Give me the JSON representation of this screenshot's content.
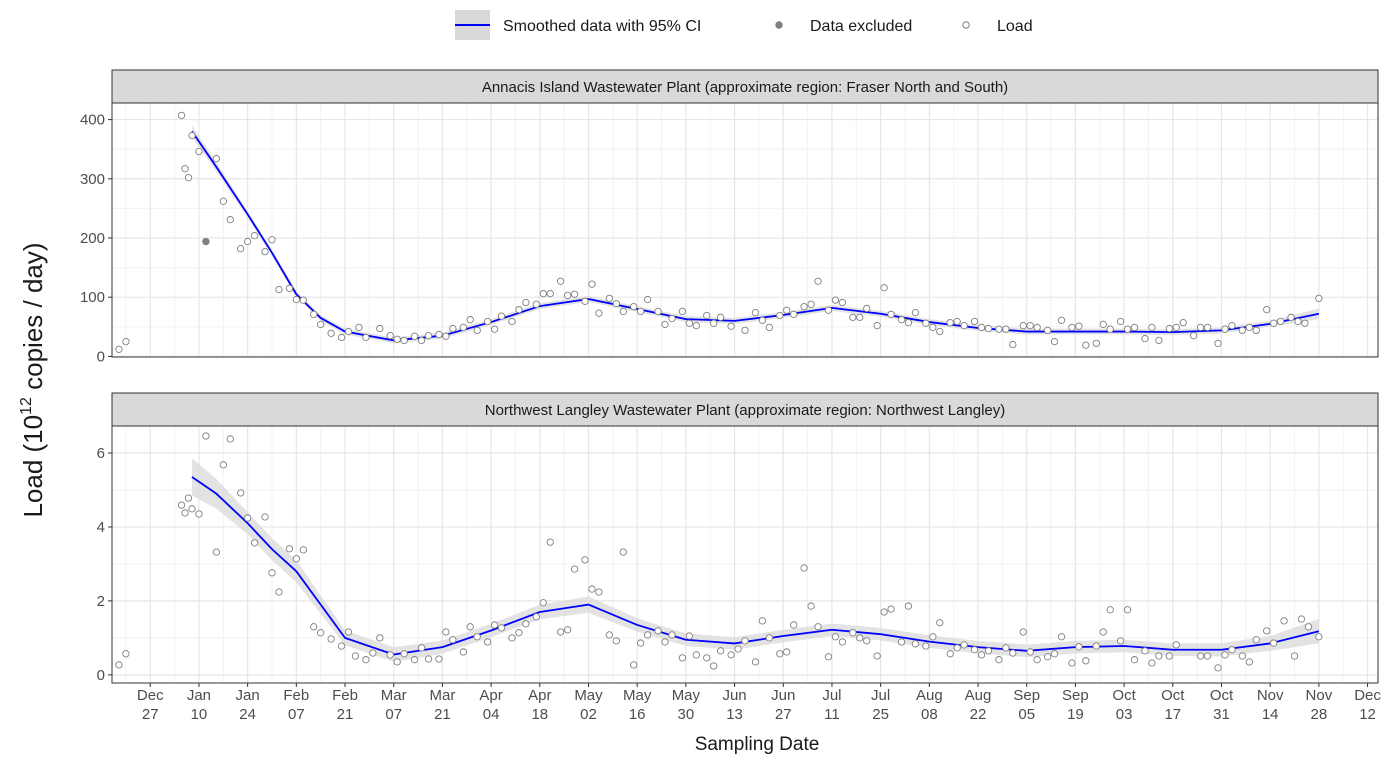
{
  "chart_data": {
    "type": "scatter",
    "x_label": "Sampling Date",
    "y_label": [
      "Load (10",
      "12",
      " copies / day)"
    ],
    "legend": [
      {
        "name": "Smoothed data with 95% CI",
        "color": "#0000ff",
        "marker": "line"
      },
      {
        "name": "Data excluded",
        "color": "#7f7f7f",
        "marker": "filled"
      },
      {
        "name": "Load",
        "color": "#7f7f7f",
        "marker": "open"
      }
    ],
    "grid": true,
    "xlim": [
      "Dec 16",
      "Dec 15"
    ],
    "xticks": [
      "Dec 27",
      "Jan 10",
      "Jan 24",
      "Feb 07",
      "Feb 21",
      "Mar 07",
      "Mar 21",
      "Apr 04",
      "Apr 18",
      "May 02",
      "May 16",
      "May 30",
      "Jun 13",
      "Jun 27",
      "Jul 11",
      "Jul 25",
      "Aug 08",
      "Aug 22",
      "Sep 05",
      "Sep 19",
      "Oct 03",
      "Oct 17",
      "Oct 31",
      "Nov 14",
      "Nov 28",
      "Dec 12"
    ],
    "panels": [
      {
        "title": "Annacis Island Wastewater Plant (approximate region: Fraser North and South)",
        "ylim": [
          -1,
          428
        ],
        "yticks": [
          0,
          100,
          200,
          300,
          400
        ],
        "load": {
          "x": [
            "Dec 18",
            "Dec 20",
            "Jan 5",
            "Jan 6",
            "Jan 7",
            "Jan 8",
            "Jan 10",
            "Jan 15",
            "Jan 17",
            "Jan 19",
            "Jan 22",
            "Jan 24",
            "Jan 26",
            "Jan 29",
            "Jan 31",
            "Feb 2",
            "Feb 5",
            "Feb 7",
            "Feb 9",
            "Feb 12",
            "Feb 14",
            "Feb 17",
            "Feb 20",
            "Feb 22",
            "Feb 25",
            "Feb 27",
            "Mar 3",
            "Mar 6",
            "Mar 8",
            "Mar 10",
            "Mar 13",
            "Mar 15",
            "Mar 17",
            "Mar 20",
            "Mar 22",
            "Mar 24",
            "Mar 27",
            "Mar 29",
            "Mar 31",
            "Apr 3",
            "Apr 5",
            "Apr 7",
            "Apr 10",
            "Apr 12",
            "Apr 14",
            "Apr 17",
            "Apr 19",
            "Apr 21",
            "Apr 24",
            "Apr 26",
            "Apr 28",
            "May 1",
            "May 3",
            "May 5",
            "May 8",
            "May 10",
            "May 12",
            "May 15",
            "May 17",
            "May 19",
            "May 22",
            "May 24",
            "May 26",
            "May 29",
            "May 31",
            "Jun 2",
            "Jun 5",
            "Jun 7",
            "Jun 9",
            "Jun 12",
            "Jun 16",
            "Jun 19",
            "Jun 21",
            "Jun 23",
            "Jun 26",
            "Jun 28",
            "Jun 30",
            "Jul 3",
            "Jul 5",
            "Jul 7",
            "Jul 10",
            "Jul 12",
            "Jul 14",
            "Jul 17",
            "Jul 19",
            "Jul 21",
            "Jul 24",
            "Jul 26",
            "Jul 28",
            "Jul 31",
            "Aug 2",
            "Aug 4",
            "Aug 7",
            "Aug 9",
            "Aug 11",
            "Aug 14",
            "Aug 16",
            "Aug 18",
            "Aug 21",
            "Aug 23",
            "Aug 25",
            "Aug 28",
            "Aug 30",
            "Sep 1",
            "Sep 4",
            "Sep 6",
            "Sep 8",
            "Sep 11",
            "Sep 13",
            "Sep 15",
            "Sep 18",
            "Sep 20",
            "Sep 22",
            "Sep 25",
            "Sep 27",
            "Sep 29",
            "Oct 2",
            "Oct 4",
            "Oct 6",
            "Oct 9",
            "Oct 11",
            "Oct 13",
            "Oct 16",
            "Oct 18",
            "Oct 20",
            "Oct 23",
            "Oct 25",
            "Oct 27",
            "Oct 30",
            "Nov 1",
            "Nov 3",
            "Nov 6",
            "Nov 8",
            "Nov 10",
            "Nov 13",
            "Nov 15",
            "Nov 17",
            "Nov 20",
            "Nov 22",
            "Nov 24",
            "Nov 28"
          ],
          "values": [
            12,
            25,
            407,
            317,
            302,
            373,
            346,
            334,
            262,
            231,
            182,
            194,
            204,
            177,
            197,
            113,
            115,
            96,
            95,
            71,
            54,
            39,
            32,
            42,
            49,
            32,
            47,
            35,
            29,
            27,
            34,
            27,
            35,
            37,
            34,
            47,
            49,
            62,
            44,
            59,
            46,
            68,
            59,
            79,
            91,
            88,
            106,
            106,
            127,
            103,
            105,
            93,
            122,
            73,
            98,
            89,
            76,
            84,
            76,
            96,
            76,
            54,
            64,
            76,
            56,
            52,
            69,
            56,
            66,
            51,
            44,
            74,
            61,
            49,
            69,
            78,
            71,
            84,
            88,
            127,
            78,
            95,
            91,
            66,
            66,
            81,
            52,
            116,
            71,
            62,
            57,
            74,
            56,
            49,
            42,
            57,
            59,
            52,
            59,
            49,
            47,
            46,
            46,
            20,
            52,
            52,
            49,
            44,
            25,
            61,
            49,
            51,
            19,
            22,
            54,
            46,
            59,
            46,
            49,
            30,
            49,
            27,
            47,
            49,
            57,
            35,
            49,
            49,
            22,
            46,
            52,
            44,
            49,
            44,
            79,
            56,
            59,
            66,
            59,
            56,
            98
          ]
        },
        "excluded": {
          "x": [
            "Jan 12"
          ],
          "values": [
            194
          ]
        },
        "smooth": {
          "x": [
            "Jan 8",
            "Jan 15",
            "Jan 24",
            "Jan 31",
            "Feb 7",
            "Feb 14",
            "Feb 21",
            "Mar 7",
            "Mar 21",
            "Apr 4",
            "Apr 18",
            "May 2",
            "May 16",
            "May 30",
            "Jun 13",
            "Jun 27",
            "Jul 11",
            "Jul 25",
            "Aug 8",
            "Aug 22",
            "Sep 5",
            "Sep 19",
            "Oct 3",
            "Oct 17",
            "Oct 31",
            "Nov 14",
            "Nov 28"
          ],
          "values": [
            380,
            320,
            240,
            175,
            105,
            65,
            42,
            27,
            35,
            58,
            85,
            97,
            80,
            63,
            60,
            70,
            82,
            72,
            58,
            48,
            42,
            42,
            42,
            41,
            44,
            55,
            72
          ],
          "lower": [
            370,
            312,
            234,
            170,
            100,
            60,
            37,
            22,
            30,
            53,
            80,
            92,
            75,
            58,
            55,
            65,
            77,
            67,
            53,
            43,
            37,
            37,
            37,
            36,
            39,
            50,
            63
          ],
          "upper": [
            390,
            328,
            246,
            180,
            110,
            70,
            47,
            32,
            40,
            63,
            90,
            102,
            85,
            68,
            65,
            75,
            87,
            77,
            63,
            53,
            47,
            47,
            47,
            46,
            49,
            60,
            81
          ]
        }
      },
      {
        "title": "Northwest Langley Wastewater Plant (approximate region: Northwest Langley)",
        "ylim": [
          -0.22,
          6.73
        ],
        "yticks": [
          0,
          2,
          4,
          6
        ],
        "load": {
          "x": [
            "Dec 18",
            "Dec 20",
            "Jan 5",
            "Jan 6",
            "Jan 7",
            "Jan 8",
            "Jan 10",
            "Jan 12",
            "Jan 15",
            "Jan 17",
            "Jan 19",
            "Jan 22",
            "Jan 24",
            "Jan 26",
            "Jan 29",
            "Jan 31",
            "Feb 2",
            "Feb 5",
            "Feb 7",
            "Feb 9",
            "Feb 12",
            "Feb 14",
            "Feb 17",
            "Feb 20",
            "Feb 22",
            "Feb 24",
            "Feb 27",
            "Mar 1",
            "Mar 3",
            "Mar 6",
            "Mar 8",
            "Mar 10",
            "Mar 13",
            "Mar 15",
            "Mar 17",
            "Mar 20",
            "Mar 22",
            "Mar 24",
            "Mar 27",
            "Mar 29",
            "Mar 31",
            "Apr 3",
            "Apr 5",
            "Apr 7",
            "Apr 10",
            "Apr 12",
            "Apr 14",
            "Apr 17",
            "Apr 19",
            "Apr 21",
            "Apr 24",
            "Apr 26",
            "Apr 28",
            "May 1",
            "May 3",
            "May 5",
            "May 8",
            "May 10",
            "May 12",
            "May 15",
            "May 17",
            "May 19",
            "May 22",
            "May 24",
            "May 26",
            "May 29",
            "May 31",
            "Jun 2",
            "Jun 5",
            "Jun 7",
            "Jun 9",
            "Jun 12",
            "Jun 14",
            "Jun 16",
            "Jun 19",
            "Jun 21",
            "Jun 23",
            "Jun 26",
            "Jun 28",
            "Jun 30",
            "Jul 3",
            "Jul 5",
            "Jul 7",
            "Jul 10",
            "Jul 12",
            "Jul 14",
            "Jul 17",
            "Jul 19",
            "Jul 21",
            "Jul 24",
            "Jul 26",
            "Jul 28",
            "Jul 31",
            "Aug 2",
            "Aug 4",
            "Aug 7",
            "Aug 9",
            "Aug 11",
            "Aug 14",
            "Aug 16",
            "Aug 18",
            "Aug 21",
            "Aug 23",
            "Aug 25",
            "Aug 28",
            "Aug 30",
            "Sep 1",
            "Sep 4",
            "Sep 6",
            "Sep 8",
            "Sep 11",
            "Sep 13",
            "Sep 15",
            "Sep 18",
            "Sep 20",
            "Sep 22",
            "Sep 25",
            "Sep 27",
            "Sep 29",
            "Oct 2",
            "Oct 4",
            "Oct 6",
            "Oct 9",
            "Oct 11",
            "Oct 13",
            "Oct 16",
            "Oct 18",
            "Oct 25",
            "Oct 27",
            "Oct 30",
            "Nov 1",
            "Nov 3",
            "Nov 6",
            "Nov 8",
            "Nov 10",
            "Nov 13",
            "Nov 15",
            "Nov 18",
            "Nov 21",
            "Nov 23",
            "Nov 25",
            "Nov 28"
          ],
          "values": [
            0.27,
            0.57,
            4.59,
            4.38,
            4.78,
            4.49,
            4.35,
            6.46,
            3.32,
            5.68,
            6.38,
            4.92,
            4.24,
            3.57,
            4.27,
            2.76,
            2.24,
            3.41,
            3.14,
            3.38,
            1.3,
            1.14,
            0.97,
            0.78,
            1.16,
            0.51,
            0.41,
            0.59,
            1.0,
            0.54,
            0.35,
            0.57,
            0.41,
            0.73,
            0.43,
            0.43,
            1.16,
            0.95,
            0.62,
            1.3,
            1.03,
            0.89,
            1.35,
            1.27,
            1.0,
            1.14,
            1.38,
            1.57,
            1.95,
            3.59,
            1.16,
            1.22,
            2.86,
            3.11,
            2.32,
            2.24,
            1.08,
            0.92,
            3.32,
            0.27,
            0.86,
            1.08,
            1.19,
            0.89,
            1.08,
            0.46,
            1.05,
            0.54,
            0.46,
            0.24,
            0.65,
            0.54,
            0.7,
            0.92,
            0.35,
            1.46,
            1.0,
            0.57,
            0.62,
            1.35,
            2.89,
            1.86,
            1.3,
            0.49,
            1.03,
            0.89,
            1.14,
            1.0,
            0.92,
            0.51,
            1.7,
            1.78,
            0.89,
            1.86,
            0.84,
            0.78,
            1.03,
            1.41,
            0.57,
            0.73,
            0.81,
            0.68,
            0.54,
            0.65,
            0.41,
            0.73,
            0.59,
            1.16,
            0.62,
            0.41,
            0.49,
            0.57,
            1.03,
            0.32,
            0.76,
            0.38,
            0.78,
            1.16,
            1.76,
            0.92,
            1.76,
            0.41,
            0.65,
            0.32,
            0.51,
            0.51,
            0.81,
            0.51,
            0.51,
            0.19,
            0.54,
            0.68,
            0.51,
            0.35,
            0.95,
            1.19,
            0.86,
            1.46,
            0.51,
            1.51,
            1.3,
            1.03
          ]
        },
        "smooth": {
          "x": [
            "Jan 8",
            "Jan 15",
            "Jan 24",
            "Jan 31",
            "Feb 7",
            "Feb 14",
            "Feb 21",
            "Mar 7",
            "Mar 21",
            "Apr 4",
            "Apr 18",
            "May 2",
            "May 16",
            "May 30",
            "Jun 13",
            "Jun 27",
            "Jul 11",
            "Jul 25",
            "Aug 8",
            "Aug 22",
            "Sep 5",
            "Sep 19",
            "Oct 3",
            "Oct 17",
            "Oct 31",
            "Nov 14",
            "Nov 28"
          ],
          "values": [
            5.35,
            4.9,
            4.1,
            3.4,
            2.8,
            1.9,
            1.0,
            0.55,
            0.75,
            1.2,
            1.7,
            1.9,
            1.35,
            0.95,
            0.85,
            1.05,
            1.22,
            1.1,
            0.9,
            0.75,
            0.65,
            0.75,
            0.78,
            0.68,
            0.68,
            0.85,
            1.18
          ],
          "lower": [
            4.85,
            4.5,
            3.8,
            3.1,
            2.5,
            1.65,
            0.8,
            0.35,
            0.57,
            1.02,
            1.5,
            1.68,
            1.17,
            0.78,
            0.68,
            0.88,
            1.05,
            0.93,
            0.73,
            0.58,
            0.48,
            0.58,
            0.61,
            0.51,
            0.5,
            0.65,
            0.85
          ],
          "upper": [
            5.85,
            5.3,
            4.4,
            3.7,
            3.1,
            2.15,
            1.2,
            0.75,
            0.93,
            1.38,
            1.9,
            2.12,
            1.53,
            1.12,
            1.02,
            1.22,
            1.39,
            1.27,
            1.07,
            0.92,
            0.82,
            0.92,
            0.95,
            0.85,
            0.86,
            1.05,
            1.51
          ]
        }
      }
    ]
  }
}
